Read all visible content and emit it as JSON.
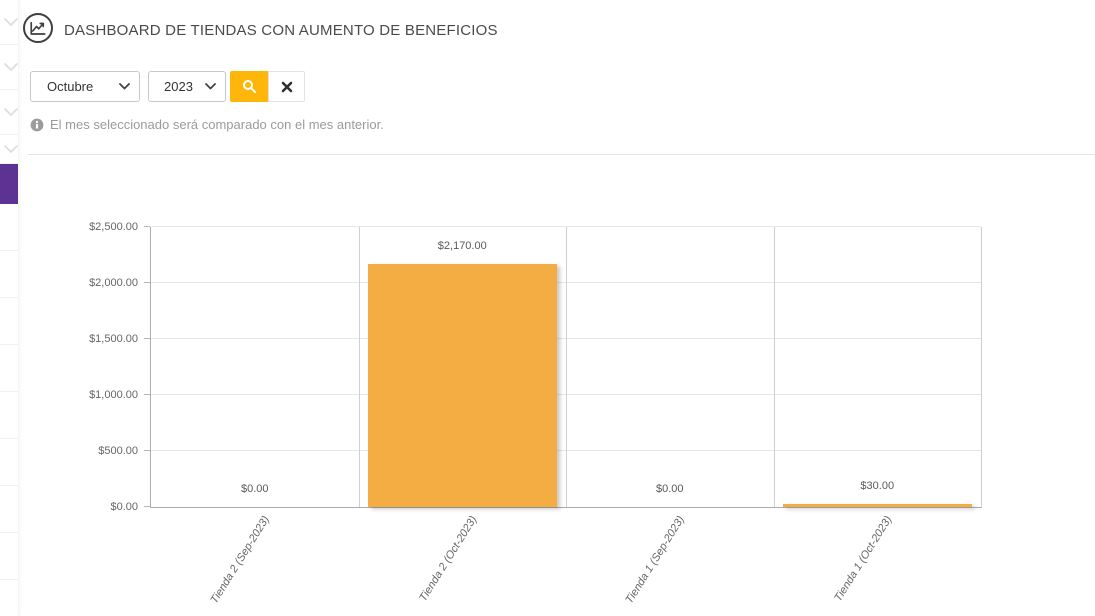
{
  "header": {
    "title": "DASHBOARD DE TIENDAS CON AUMENTO DE BENEFICIOS",
    "icon": "line-chart-icon"
  },
  "filters": {
    "month_select": {
      "value": "Octubre"
    },
    "year_select": {
      "value": "2023"
    },
    "search_button": {
      "icon": "magnifier-icon"
    },
    "clear_button": {
      "icon": "x-icon"
    },
    "note": "El mes seleccionado será comparado con el mes anterior."
  },
  "sidebar": {
    "items": [
      {
        "icon": "chevron-down-icon",
        "active": false
      },
      {
        "icon": "chevron-down-icon",
        "active": false
      },
      {
        "icon": "chevron-down-icon",
        "active": false
      },
      {
        "icon": "chevron-down-icon",
        "active": false
      },
      {
        "icon": "",
        "active": true
      },
      {
        "icon": "",
        "active": false
      },
      {
        "icon": "",
        "active": false
      },
      {
        "icon": "",
        "active": false
      },
      {
        "icon": "",
        "active": false
      },
      {
        "icon": "",
        "active": false
      },
      {
        "icon": "",
        "active": false
      },
      {
        "icon": "",
        "active": false
      },
      {
        "icon": "",
        "active": false
      },
      {
        "icon": "",
        "active": false
      }
    ],
    "active_color": "#5c3292"
  },
  "colors": {
    "accent_purple": "#5c3292",
    "button_yellow": "#ffb60a",
    "bar_orange": "#f4ad42",
    "title_text": "#4a4a4a",
    "muted_text": "#9b9b9b",
    "axis_text": "#666666"
  },
  "chart_data": {
    "type": "bar",
    "title": "",
    "xlabel": "",
    "ylabel": "",
    "categories": [
      "Tienda 2 (Sep-2023)",
      "Tienda 2 (Oct-2023)",
      "Tienda 1 (Sep-2023)",
      "Tienda 1 (Oct-2023)"
    ],
    "values": [
      0,
      2170,
      0,
      30
    ],
    "value_labels": [
      "$0.00",
      "$2,170.00",
      "$0.00",
      "$30.00"
    ],
    "ylim": [
      0,
      2500
    ],
    "y_ticks": [
      {
        "value": 0,
        "label": "$0.00"
      },
      {
        "value": 500,
        "label": "$500.00"
      },
      {
        "value": 1000,
        "label": "$1,000.00"
      },
      {
        "value": 1500,
        "label": "$1,500.00"
      },
      {
        "value": 2000,
        "label": "$2,000.00"
      },
      {
        "value": 2500,
        "label": "$2,500.00"
      }
    ],
    "bar_color": "#f4ad42",
    "grid": true,
    "legend": "none",
    "x_label_rotation": -58
  }
}
